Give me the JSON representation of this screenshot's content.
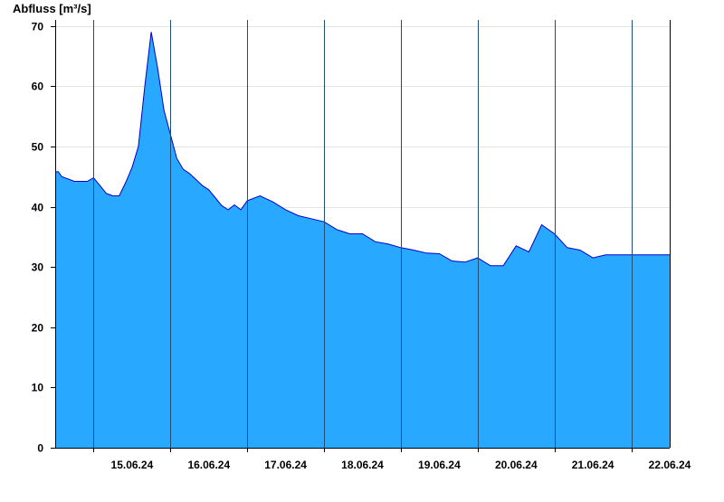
{
  "chart_data": {
    "type": "area",
    "ylabel": "Abfluss [m³/s]",
    "xlabel": "",
    "title": "",
    "ylim": [
      0,
      71
    ],
    "yticks": [
      0,
      10,
      20,
      30,
      40,
      50,
      60,
      70
    ],
    "x_start": "14.06.24 12:00",
    "x_end": "22.06.24 12:00",
    "day_labels": [
      "15.06.24",
      "16.06.24",
      "17.06.24",
      "18.06.24",
      "19.06.24",
      "20.06.24",
      "21.06.24",
      "22.06.24"
    ],
    "grid": true,
    "fill_color": "#29a8ff",
    "line_color": "#0000cc",
    "series": [
      {
        "x": [
          "14.06.24 12:00",
          "14.06.24 13:00",
          "14.06.24 14:00",
          "14.06.24 18:00",
          "14.06.24 22:00",
          "15.06.24 00:00",
          "15.06.24 04:00",
          "15.06.24 06:00",
          "15.06.24 08:00",
          "15.06.24 10:00",
          "15.06.24 12:00",
          "15.06.24 14:00",
          "15.06.24 16:00",
          "15.06.24 18:00",
          "15.06.24 20:00",
          "15.06.24 22:00",
          "16.06.24 00:00",
          "16.06.24 02:00",
          "16.06.24 04:00",
          "16.06.24 06:00",
          "16.06.24 08:00",
          "16.06.24 10:00",
          "16.06.24 12:00",
          "16.06.24 14:00",
          "16.06.24 16:00",
          "16.06.24 18:00",
          "16.06.24 20:00",
          "16.06.24 22:00",
          "17.06.24 00:00",
          "17.06.24 04:00",
          "17.06.24 08:00",
          "17.06.24 12:00",
          "17.06.24 16:00",
          "17.06.24 20:00",
          "18.06.24 00:00",
          "18.06.24 04:00",
          "18.06.24 08:00",
          "18.06.24 10:00",
          "18.06.24 12:00",
          "18.06.24 16:00",
          "18.06.24 20:00",
          "19.06.24 00:00",
          "19.06.24 04:00",
          "19.06.24 08:00",
          "19.06.24 12:00",
          "19.06.24 16:00",
          "19.06.24 20:00",
          "20.06.24 00:00",
          "20.06.24 04:00",
          "20.06.24 08:00",
          "20.06.24 12:00",
          "20.06.24 16:00",
          "20.06.24 20:00",
          "21.06.24 00:00",
          "21.06.24 04:00",
          "21.06.24 08:00",
          "21.06.24 12:00",
          "21.06.24 16:00",
          "21.06.24 20:00",
          "22.06.24 00:00",
          "22.06.24 02:00",
          "22.06.24 04:00",
          "22.06.24 06:00",
          "22.06.24 08:00",
          "22.06.24 10:00",
          "22.06.24 12:00"
        ],
        "y": [
          45.8,
          45.8,
          45.0,
          44.2,
          44.2,
          44.8,
          42.2,
          41.8,
          41.8,
          44.0,
          46.5,
          50.0,
          60.0,
          69.0,
          63.0,
          56.0,
          52.0,
          48.0,
          46.2,
          45.5,
          44.5,
          43.5,
          42.8,
          41.5,
          40.2,
          39.5,
          40.3,
          39.5,
          41.0,
          41.8,
          40.8,
          39.5,
          38.5,
          38.0,
          37.5,
          36.2,
          35.5,
          35.5,
          35.5,
          34.2,
          33.8,
          33.2,
          32.8,
          32.3,
          32.2,
          31.0,
          30.8,
          31.5,
          30.2,
          30.2,
          33.5,
          32.5,
          37.0,
          35.5,
          33.2,
          32.8,
          31.5,
          32.0,
          32.0,
          32.0,
          32.0,
          32.0,
          32.0,
          32.0,
          32.0,
          32.0
        ]
      }
    ]
  }
}
